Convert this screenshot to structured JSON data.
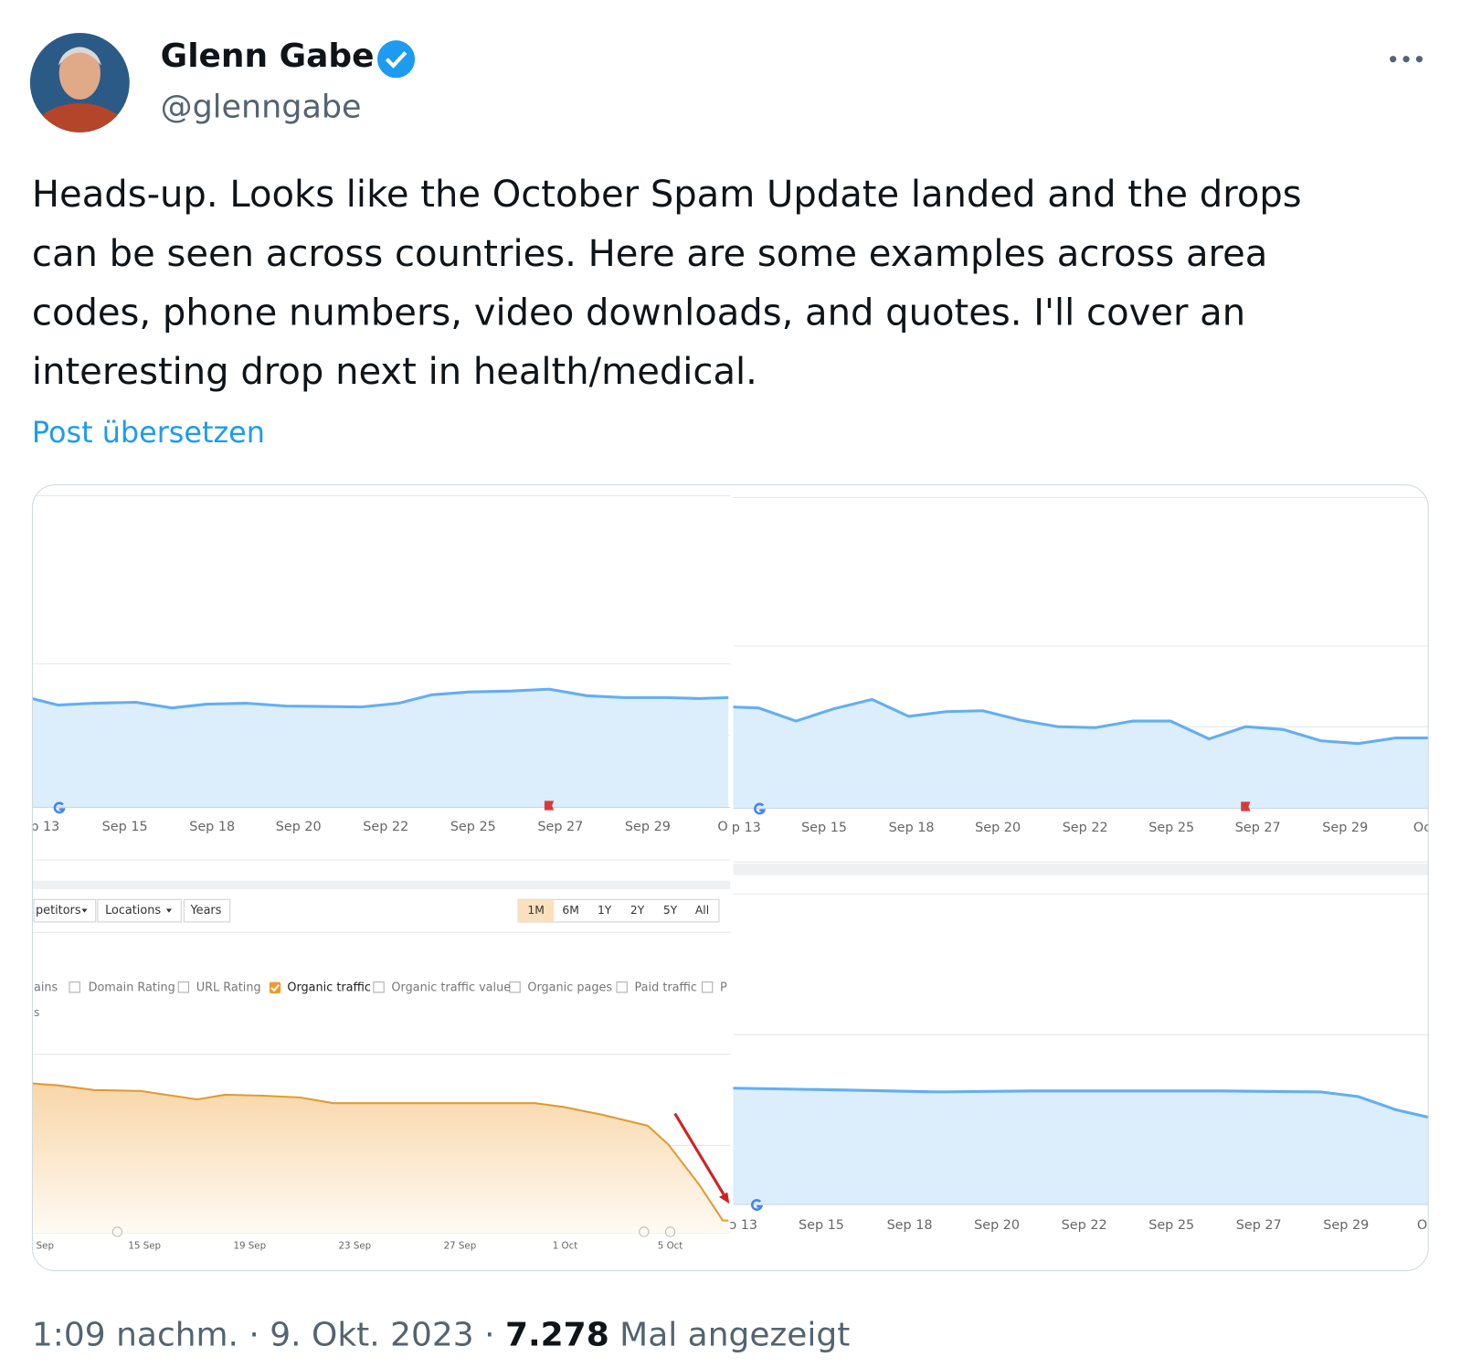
{
  "header": {
    "name": "Glenn Gabe",
    "handle": "@glenngabe"
  },
  "body": {
    "lines": [
      "Heads-up. Looks like the October Spam Update landed and the drops",
      "can be seen across countries. Here are some examples across area",
      "codes, phone numbers, video downloads, and quotes. I'll cover an",
      "interesting drop next in health/medical."
    ],
    "translate": "Post übersetzen"
  },
  "media": {
    "panels": [
      {
        "x_labels": [
          "p 13",
          "Sep 15",
          "Sep 18",
          "Sep 20",
          "Sep 22",
          "Sep 25",
          "Sep 27",
          "Sep 29",
          "O"
        ]
      },
      {
        "x_labels": [
          "p 13",
          "Sep 15",
          "Sep 18",
          "Sep 20",
          "Sep 22",
          "Sep 25",
          "Sep 27",
          "Sep 29",
          "Oc"
        ]
      },
      {
        "toolbar": [
          "petitors",
          "Locations",
          "Years"
        ],
        "ranges": [
          "1M",
          "6M",
          "1Y",
          "2Y",
          "5Y",
          "All"
        ],
        "metrics": [
          "ains",
          "Domain Rating",
          "URL Rating",
          "Organic traffic",
          "Organic traffic value",
          "Organic pages",
          "Paid traffic",
          "P"
        ],
        "row2": "s",
        "x_labels": [
          "Sep",
          "15 Sep",
          "19 Sep",
          "23 Sep",
          "27 Sep",
          "1 Oct",
          "5 Oct"
        ]
      },
      {
        "x_labels": [
          "ɔ 13",
          "Sep 15",
          "Sep 18",
          "Sep 20",
          "Sep 22",
          "Sep 25",
          "Sep 27",
          "Sep 29",
          "O"
        ]
      }
    ]
  },
  "footer": {
    "time": "1:09 nachm.",
    "separator": "·",
    "date": "9. Okt. 2023",
    "views": "7.278",
    "views_label": "Mal angezeigt"
  }
}
